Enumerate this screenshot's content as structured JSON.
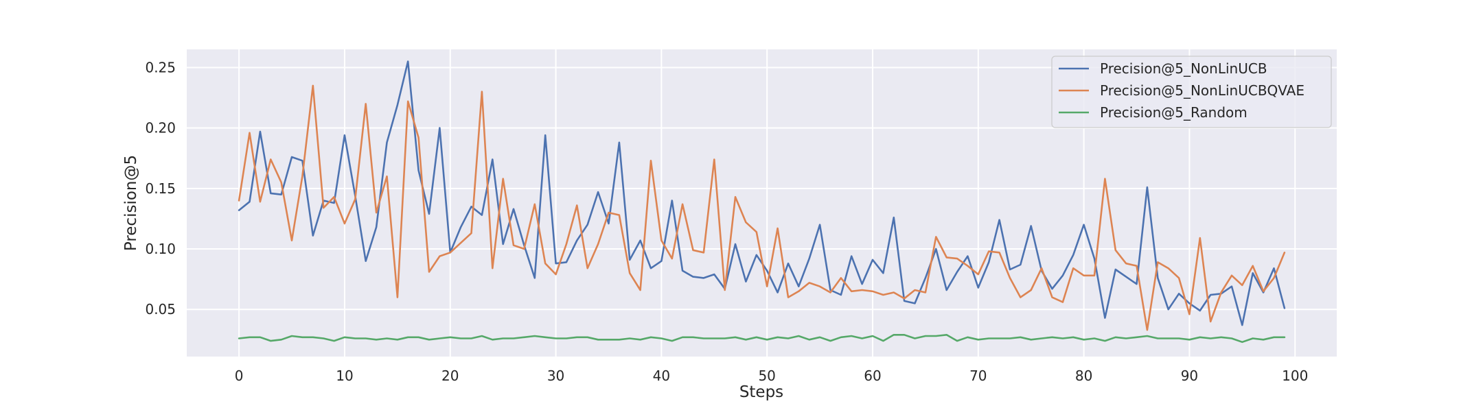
{
  "chart_data": {
    "type": "line",
    "xlabel": "Steps",
    "ylabel": "Precision@5",
    "xlim": [
      -4.95,
      103.95
    ],
    "ylim": [
      0.011,
      0.265
    ],
    "xticks": [
      0,
      10,
      20,
      30,
      40,
      50,
      60,
      70,
      80,
      90,
      100
    ],
    "yticks": [
      0.05,
      0.1,
      0.15,
      0.2,
      0.25
    ],
    "ytick_labels": [
      "0.05",
      "0.10",
      "0.15",
      "0.20",
      "0.25"
    ],
    "grid": true,
    "legend_position": "top-right",
    "x": [
      0,
      1,
      2,
      3,
      4,
      5,
      6,
      7,
      8,
      9,
      10,
      11,
      12,
      13,
      14,
      15,
      16,
      17,
      18,
      19,
      20,
      21,
      22,
      23,
      24,
      25,
      26,
      27,
      28,
      29,
      30,
      31,
      32,
      33,
      34,
      35,
      36,
      37,
      38,
      39,
      40,
      41,
      42,
      43,
      44,
      45,
      46,
      47,
      48,
      49,
      50,
      51,
      52,
      53,
      54,
      55,
      56,
      57,
      58,
      59,
      60,
      61,
      62,
      63,
      64,
      65,
      66,
      67,
      68,
      69,
      70,
      71,
      72,
      73,
      74,
      75,
      76,
      77,
      78,
      79,
      80,
      81,
      82,
      83,
      84,
      85,
      86,
      87,
      88,
      89,
      90,
      91,
      92,
      93,
      94,
      95,
      96,
      97,
      98,
      99
    ],
    "series": [
      {
        "name": "Precision@5_NonLinUCB",
        "color": "#4c72b0",
        "values": [
          0.132,
          0.139,
          0.197,
          0.146,
          0.145,
          0.176,
          0.173,
          0.111,
          0.14,
          0.138,
          0.194,
          0.144,
          0.09,
          0.118,
          0.188,
          0.219,
          0.255,
          0.165,
          0.129,
          0.2,
          0.097,
          0.118,
          0.135,
          0.128,
          0.174,
          0.104,
          0.133,
          0.103,
          0.076,
          0.194,
          0.088,
          0.089,
          0.107,
          0.12,
          0.147,
          0.121,
          0.188,
          0.091,
          0.107,
          0.084,
          0.09,
          0.14,
          0.082,
          0.077,
          0.076,
          0.079,
          0.067,
          0.104,
          0.073,
          0.095,
          0.082,
          0.064,
          0.088,
          0.069,
          0.092,
          0.12,
          0.066,
          0.062,
          0.094,
          0.071,
          0.091,
          0.08,
          0.126,
          0.057,
          0.055,
          0.076,
          0.1,
          0.066,
          0.081,
          0.094,
          0.068,
          0.089,
          0.124,
          0.083,
          0.087,
          0.119,
          0.082,
          0.067,
          0.078,
          0.095,
          0.12,
          0.092,
          0.043,
          0.083,
          0.077,
          0.071,
          0.151,
          0.076,
          0.05,
          0.063,
          0.055,
          0.049,
          0.062,
          0.063,
          0.069,
          0.037,
          0.08,
          0.064,
          0.084,
          0.051
        ]
      },
      {
        "name": "Precision@5_NonLinUCBQVAE",
        "color": "#dd8452",
        "values": [
          0.14,
          0.196,
          0.139,
          0.174,
          0.155,
          0.107,
          0.16,
          0.235,
          0.134,
          0.143,
          0.121,
          0.141,
          0.22,
          0.13,
          0.16,
          0.06,
          0.222,
          0.192,
          0.081,
          0.094,
          0.097,
          0.105,
          0.113,
          0.23,
          0.084,
          0.158,
          0.103,
          0.1,
          0.137,
          0.088,
          0.079,
          0.104,
          0.136,
          0.084,
          0.104,
          0.13,
          0.128,
          0.08,
          0.066,
          0.173,
          0.107,
          0.092,
          0.137,
          0.099,
          0.097,
          0.174,
          0.066,
          0.143,
          0.122,
          0.114,
          0.069,
          0.117,
          0.06,
          0.065,
          0.072,
          0.069,
          0.064,
          0.076,
          0.065,
          0.066,
          0.065,
          0.062,
          0.064,
          0.059,
          0.066,
          0.064,
          0.11,
          0.093,
          0.092,
          0.086,
          0.079,
          0.098,
          0.097,
          0.076,
          0.06,
          0.066,
          0.084,
          0.06,
          0.056,
          0.084,
          0.078,
          0.078,
          0.158,
          0.099,
          0.088,
          0.086,
          0.033,
          0.089,
          0.084,
          0.076,
          0.046,
          0.109,
          0.04,
          0.064,
          0.078,
          0.07,
          0.086,
          0.065,
          0.076,
          0.097
        ]
      },
      {
        "name": "Precision@5_Random",
        "color": "#55a868",
        "values": [
          0.026,
          0.027,
          0.027,
          0.024,
          0.025,
          0.028,
          0.027,
          0.027,
          0.026,
          0.024,
          0.027,
          0.026,
          0.026,
          0.025,
          0.026,
          0.025,
          0.027,
          0.027,
          0.025,
          0.026,
          0.027,
          0.026,
          0.026,
          0.028,
          0.025,
          0.026,
          0.026,
          0.027,
          0.028,
          0.027,
          0.026,
          0.026,
          0.027,
          0.027,
          0.025,
          0.025,
          0.025,
          0.026,
          0.025,
          0.027,
          0.026,
          0.024,
          0.027,
          0.027,
          0.026,
          0.026,
          0.026,
          0.027,
          0.025,
          0.027,
          0.025,
          0.027,
          0.026,
          0.028,
          0.025,
          0.027,
          0.024,
          0.027,
          0.028,
          0.026,
          0.028,
          0.024,
          0.029,
          0.029,
          0.026,
          0.028,
          0.028,
          0.029,
          0.024,
          0.027,
          0.025,
          0.026,
          0.026,
          0.026,
          0.027,
          0.025,
          0.026,
          0.027,
          0.026,
          0.027,
          0.025,
          0.026,
          0.024,
          0.027,
          0.026,
          0.027,
          0.028,
          0.026,
          0.026,
          0.026,
          0.025,
          0.027,
          0.026,
          0.027,
          0.026,
          0.023,
          0.026,
          0.025,
          0.027,
          0.027
        ]
      }
    ]
  }
}
